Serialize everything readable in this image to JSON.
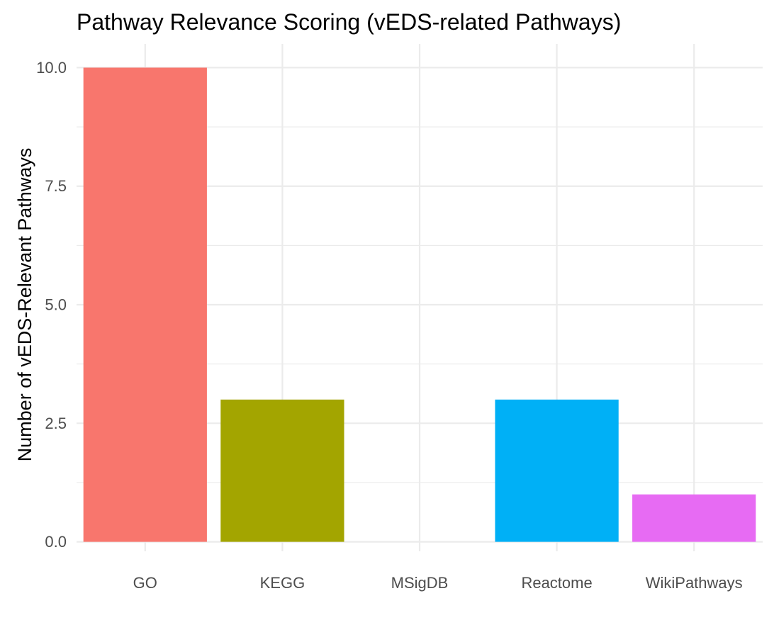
{
  "chart_data": {
    "type": "bar",
    "title": "Pathway Relevance Scoring (vEDS-related Pathways)",
    "xlabel": "",
    "ylabel": "Number of vEDS-Relevant Pathways",
    "categories": [
      "GO",
      "KEGG",
      "MSigDB",
      "Reactome",
      "WikiPathways"
    ],
    "values": [
      10,
      3,
      0,
      3,
      1
    ],
    "colors": [
      "#F8766D",
      "#A3A500",
      "#00BF7D",
      "#00B0F6",
      "#E76BF3"
    ],
    "ylim": [
      -0.2,
      10.5
    ],
    "yticks": [
      0.0,
      2.5,
      5.0,
      7.5,
      10.0
    ],
    "ytick_labels": [
      "0.0",
      "2.5",
      "5.0",
      "7.5",
      "10.0"
    ],
    "grid": true,
    "legend": "none"
  }
}
